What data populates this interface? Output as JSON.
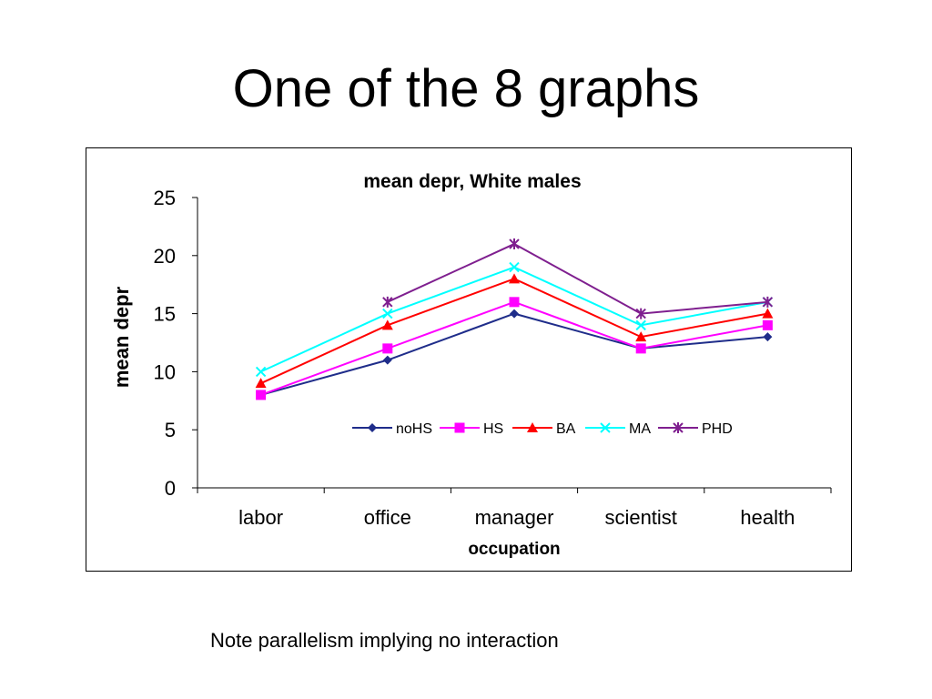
{
  "slide": {
    "title": "One of the 8 graphs",
    "note": "Note parallelism implying no interaction"
  },
  "chart_data": {
    "type": "line",
    "title": "mean depr, White males",
    "xlabel": "occupation",
    "ylabel": "mean depr",
    "categories": [
      "labor",
      "office",
      "manager",
      "scientist",
      "health"
    ],
    "ylim": [
      0,
      25
    ],
    "yticks": [
      0,
      5,
      10,
      15,
      20,
      25
    ],
    "grid": false,
    "legend_position": "inside-center",
    "series": [
      {
        "name": "noHS",
        "values": [
          8,
          11,
          15,
          12,
          13
        ],
        "color": "#1f2d8a",
        "marker": "diamond"
      },
      {
        "name": "HS",
        "values": [
          8,
          12,
          16,
          12,
          14
        ],
        "color": "#ff00ff",
        "marker": "square"
      },
      {
        "name": "BA",
        "values": [
          9,
          14,
          18,
          13,
          15
        ],
        "color": "#ff0000",
        "marker": "triangle"
      },
      {
        "name": "MA",
        "values": [
          10,
          15,
          19,
          14,
          16
        ],
        "color": "#00ffff",
        "marker": "x"
      },
      {
        "name": "PHD",
        "values": [
          null,
          16,
          21,
          15,
          16
        ],
        "color": "#7f1f8f",
        "marker": "star"
      }
    ]
  }
}
